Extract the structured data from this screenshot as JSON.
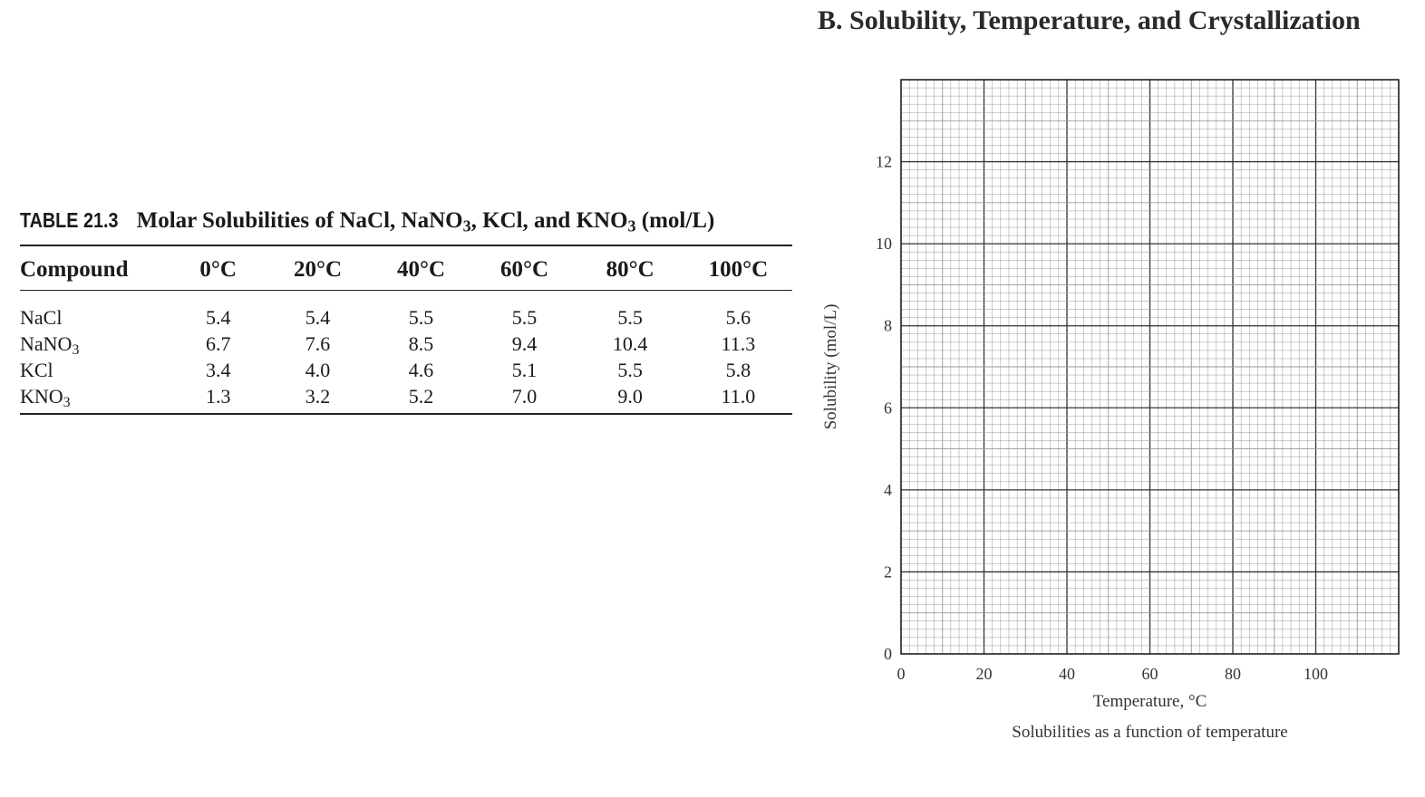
{
  "section_heading": "B. Solubility, Temperature, and Crystallization",
  "table": {
    "number": "TABLE 21.3",
    "title": {
      "p1": "Molar Solubilities of NaCl, NaNO",
      "s1": "3",
      "p2": ", KCl, and KNO",
      "s2": "3",
      "p3": " (mol/L)"
    },
    "header": [
      "Compound",
      "0°C",
      "20°C",
      "40°C",
      "60°C",
      "80°C",
      "100°C"
    ],
    "rows": [
      {
        "compound": "NaCl",
        "sub": "",
        "values": [
          "5.4",
          "5.4",
          "5.5",
          "5.5",
          "5.5",
          "5.6"
        ]
      },
      {
        "compound": "NaNO",
        "sub": "3",
        "values": [
          "6.7",
          "7.6",
          "8.5",
          "9.4",
          "10.4",
          "11.3"
        ]
      },
      {
        "compound": "KCl",
        "sub": "",
        "values": [
          "3.4",
          "4.0",
          "4.6",
          "5.1",
          "5.5",
          "5.8"
        ]
      },
      {
        "compound": "KNO",
        "sub": "3",
        "values": [
          "1.3",
          "3.2",
          "5.2",
          "7.0",
          "9.0",
          "11.0"
        ]
      }
    ]
  },
  "chart_data": {
    "type": "scatter",
    "title": "",
    "xlabel": "Temperature, °C",
    "ylabel": "Solubility (mol/L)",
    "caption": "Solubilities as a function of temperature",
    "xlim": [
      0,
      120
    ],
    "ylim": [
      0,
      14
    ],
    "xticks": [
      0,
      20,
      40,
      60,
      80,
      100
    ],
    "yticks": [
      0,
      2,
      4,
      6,
      8,
      10,
      12
    ],
    "grid": true,
    "series": []
  },
  "colors": {
    "ink": "#1a1a1a",
    "grid_major": "#333333",
    "grid_minor": "#9a9a9a",
    "paper": "#ffffff"
  }
}
